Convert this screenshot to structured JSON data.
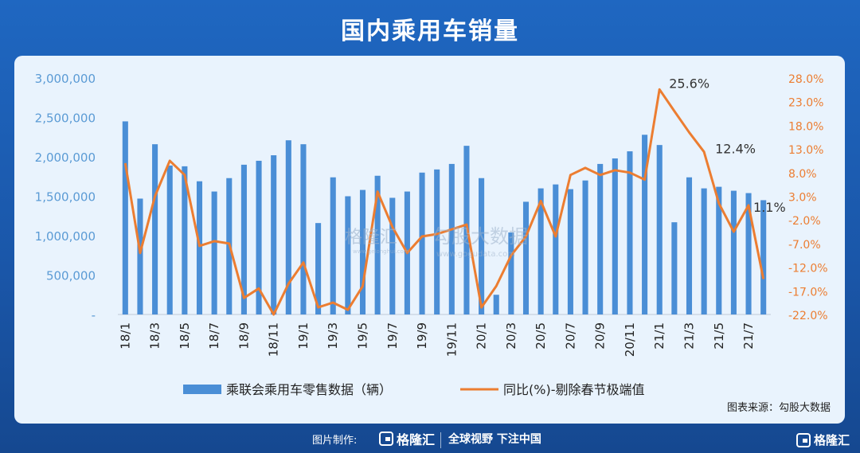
{
  "title": "国内乘用车销量",
  "watermark": {
    "brand1": "格隆汇",
    "brand1_url": "www.gelonghui.com",
    "brand2": "勾股大数据",
    "brand2_url": "www.gogudata.com"
  },
  "footer": {
    "made_by": "图片制作:",
    "brand": "格隆汇",
    "slogan": "全球视野 下注中国",
    "corner_brand": "格隆汇"
  },
  "chart_data": {
    "type": "bar+line",
    "categories": [
      "18/1",
      "18/2",
      "18/3",
      "18/4",
      "18/5",
      "18/6",
      "18/7",
      "18/8",
      "18/9",
      "18/10",
      "18/11",
      "18/12",
      "19/1",
      "19/2",
      "19/3",
      "19/4",
      "19/5",
      "19/6",
      "19/7",
      "19/8",
      "19/9",
      "19/10",
      "19/11",
      "19/12",
      "20/1",
      "20/2",
      "20/3",
      "20/4",
      "20/5",
      "20/6",
      "20/7",
      "20/8",
      "20/9",
      "20/10",
      "20/11",
      "20/12",
      "21/1",
      "21/2",
      "21/3",
      "21/4",
      "21/5",
      "21/6",
      "21/7",
      "21/8"
    ],
    "x_tick_labels": [
      "18/1",
      "18/3",
      "18/5",
      "18/7",
      "18/9",
      "18/11",
      "19/1",
      "19/3",
      "19/5",
      "19/7",
      "19/9",
      "19/11",
      "20/1",
      "20/3",
      "20/5",
      "20/7",
      "20/9",
      "20/11",
      "21/1",
      "21/3",
      "21/5",
      "21/7"
    ],
    "series": [
      {
        "name": "乘联会乘用车零售数据（辆）",
        "type": "bar",
        "axis": "left",
        "color": "#4a8ed6",
        "values": [
          2450000,
          1470000,
          2160000,
          1890000,
          1880000,
          1690000,
          1560000,
          1730000,
          1900000,
          1950000,
          2020000,
          2210000,
          2160000,
          1160000,
          1740000,
          1500000,
          1580000,
          1760000,
          1480000,
          1560000,
          1800000,
          1840000,
          1910000,
          2140000,
          1730000,
          250000,
          1040000,
          1430000,
          1600000,
          1650000,
          1590000,
          1700000,
          1910000,
          1980000,
          2070000,
          2280000,
          2150000,
          1170000,
          1740000,
          1600000,
          1620000,
          1570000,
          1540000,
          1450000
        ]
      },
      {
        "name": "同比(%)-剔除春节极端值",
        "type": "line",
        "axis": "right",
        "color": "#ec7d31",
        "values": [
          10.0,
          -9.0,
          3.0,
          10.5,
          7.5,
          -7.5,
          -6.5,
          -7.0,
          -18.5,
          -16.5,
          -22.0,
          -15.5,
          -11.0,
          -20.5,
          -19.5,
          -21.0,
          -16.0,
          4.0,
          -3.5,
          -9.0,
          -5.5,
          -5.0,
          -4.0,
          -3.0,
          -20.5,
          -16.0,
          -9.5,
          -5.5,
          2.0,
          -5.5,
          7.5,
          9.0,
          7.5,
          8.5,
          8.0,
          6.5,
          25.6,
          21.0,
          16.5,
          12.4,
          1.5,
          -4.5,
          1.1,
          -14.5
        ]
      }
    ],
    "y_left": {
      "min": 0,
      "max": 3000000,
      "step": 500000,
      "tick_labels": [
        "-",
        "500,000",
        "1,000,000",
        "1,500,000",
        "2,000,000",
        "2,500,000",
        "3,000,000"
      ]
    },
    "y_right": {
      "min": -22.0,
      "max": 28.0,
      "step": 5,
      "tick_labels": [
        "-22.0%",
        "-17.0%",
        "-12.0%",
        "-7.0%",
        "-2.0%",
        "3.0%",
        "8.0%",
        "13.0%",
        "18.0%",
        "23.0%",
        "28.0%"
      ]
    },
    "annotations": [
      {
        "category": "21/1",
        "text": "25.6%"
      },
      {
        "category": "21/4",
        "text": "12.4%"
      },
      {
        "category": "21/7",
        "text": "1.1%"
      }
    ],
    "legend_position": "bottom",
    "source": "图表来源：勾股大数据",
    "colors": {
      "left_axis": "#5b9bd5",
      "right_axis": "#ec7d31",
      "label": "#333333"
    }
  }
}
